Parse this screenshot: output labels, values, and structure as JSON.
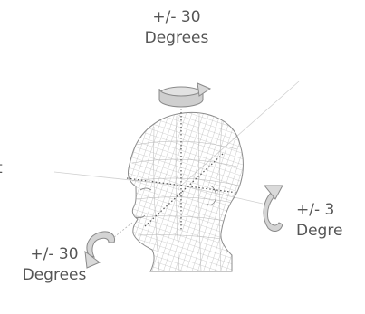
{
  "labels": {
    "top": {
      "line1": "+/- 30",
      "line2": "Degrees"
    },
    "right": {
      "line1": "+/- 3",
      "line2": "Degre"
    },
    "bottom_left": {
      "line1": "+/- 30",
      "line2": "Degrees"
    },
    "left_edge_fragment": "t"
  },
  "colors": {
    "text": "#555555",
    "mesh": "#9a9a9a",
    "axis_line": "#c8c8c8",
    "dotted_axis": "#555555",
    "arrow_fill": "#d6d6d6",
    "arrow_stroke": "#8a8a8a"
  },
  "icons": [
    "head-mesh-icon",
    "rotation-arrow-yaw-icon",
    "rotation-arrow-roll-icon",
    "rotation-arrow-pitch-icon"
  ]
}
